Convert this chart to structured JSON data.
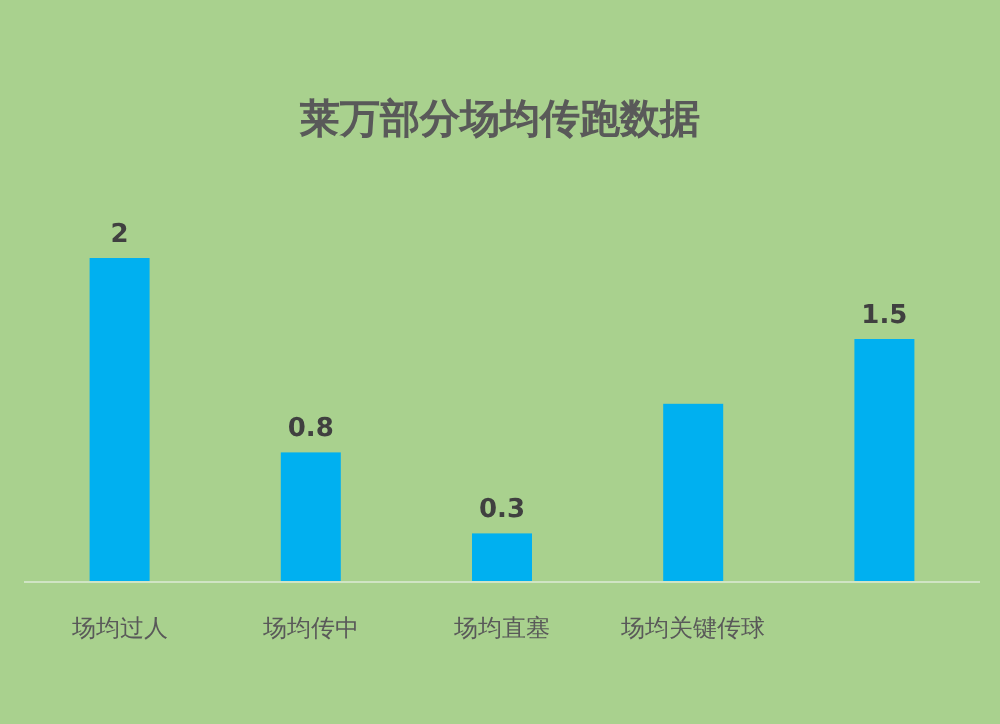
{
  "chart_data": {
    "type": "bar",
    "title": "莱万部分场均传跑数据",
    "categories": [
      "场均过人",
      "场均传中",
      "场均直塞",
      "场均关键传球",
      null
    ],
    "values": [
      2,
      0.8,
      0.3,
      1.1,
      1.5
    ],
    "value_labels": [
      "2",
      "0.8",
      "0.3",
      null,
      "1.5"
    ],
    "color": "#00b0f0"
  }
}
